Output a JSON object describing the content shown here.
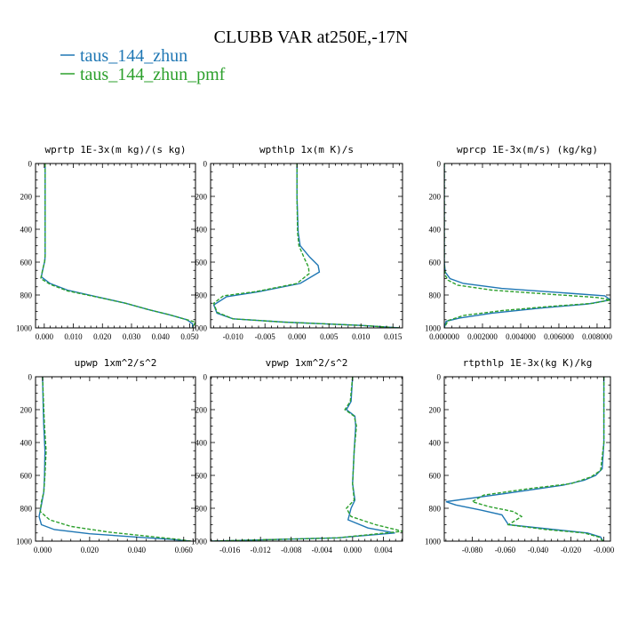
{
  "figure": {
    "title": "CLUBB VAR at250E,-17N",
    "legend": [
      {
        "name": "taus_144_zhun",
        "color": "#1f77b4",
        "dash": "solid"
      },
      {
        "name": "taus_144_zhun_pmf",
        "color": "#2ca02c",
        "dash": "dashed"
      }
    ]
  },
  "chart_data": [
    {
      "type": "line",
      "title": "wprtp  1E-3x(m kg)/(s kg)",
      "xlim": [
        -0.003,
        0.052
      ],
      "ylim": [
        0,
        1000
      ],
      "y_inverted": true,
      "xticks": [
        0.0,
        0.01,
        0.02,
        0.03,
        0.04,
        0.05
      ],
      "xtick_labels": [
        "0.000",
        "0.010",
        "0.020",
        "0.030",
        "0.040",
        "0.050"
      ],
      "yticks": [
        0,
        200,
        400,
        600,
        800,
        1000
      ],
      "ytick_labels": [
        "0",
        "200",
        "400",
        "600",
        "800",
        "1000"
      ],
      "grid": false,
      "series": [
        {
          "name": "taus_144_zhun",
          "color": "#1f77b4",
          "dash": "solid",
          "x": [
            0.0003,
            0.0003,
            0.0003,
            0.0003,
            0.0002,
            -0.0003,
            -0.001,
            0.002,
            0.008,
            0.018,
            0.028,
            0.036,
            0.043,
            0.049,
            0.051,
            0.051
          ],
          "y": [
            0,
            200,
            400,
            550,
            590,
            630,
            690,
            730,
            770,
            810,
            850,
            890,
            920,
            950,
            975,
            1000
          ]
        },
        {
          "name": "taus_144_zhun_pmf",
          "color": "#2ca02c",
          "dash": "dashed",
          "x": [
            0.0003,
            0.0003,
            0.0003,
            0.0003,
            0.0001,
            -0.0005,
            -0.0012,
            0.002,
            0.008,
            0.018,
            0.028,
            0.036,
            0.043,
            0.049,
            0.052,
            0.051
          ],
          "y": [
            0,
            200,
            400,
            560,
            600,
            640,
            700,
            735,
            775,
            812,
            850,
            890,
            920,
            950,
            965,
            1000
          ]
        }
      ]
    },
    {
      "type": "line",
      "title": "wpthlp  1x(m K)/s",
      "xlim": [
        -0.0135,
        0.0165
      ],
      "ylim": [
        0,
        1000
      ],
      "y_inverted": true,
      "xticks": [
        -0.01,
        -0.005,
        0.0,
        0.005,
        0.01,
        0.015
      ],
      "xtick_labels": [
        "-0.010",
        "-0.005",
        "0.000",
        "0.005",
        "0.010",
        "0.015"
      ],
      "yticks": [
        0,
        200,
        400,
        600,
        800,
        1000
      ],
      "ytick_labels": [
        "0",
        "200",
        "400",
        "600",
        "800",
        "1000"
      ],
      "grid": false,
      "series": [
        {
          "name": "taus_144_zhun",
          "color": "#1f77b4",
          "dash": "solid",
          "x": [
            0.0,
            0.0,
            0.0002,
            0.0005,
            0.002,
            0.0033,
            0.0035,
            0.0005,
            -0.006,
            -0.011,
            -0.013,
            -0.0125,
            -0.01,
            -0.002,
            0.01,
            0.016
          ],
          "y": [
            0,
            200,
            420,
            500,
            570,
            620,
            660,
            730,
            780,
            810,
            860,
            910,
            945,
            965,
            985,
            1000
          ]
        },
        {
          "name": "taus_144_zhun_pmf",
          "color": "#2ca02c",
          "dash": "dashed",
          "x": [
            0.0,
            0.0,
            0.0001,
            0.0003,
            0.0012,
            0.0018,
            0.0019,
            0.0,
            -0.0065,
            -0.0115,
            -0.013,
            -0.0125,
            -0.01,
            -0.002,
            0.01,
            0.016
          ],
          "y": [
            0,
            200,
            420,
            500,
            580,
            630,
            670,
            730,
            780,
            805,
            850,
            905,
            945,
            965,
            985,
            1000
          ]
        }
      ]
    },
    {
      "type": "line",
      "title": "wprcp  1E-3x(m/s) (kg/kg)",
      "xlim": [
        0,
        0.0087
      ],
      "ylim": [
        0,
        1000
      ],
      "y_inverted": true,
      "xticks": [
        0.0,
        0.002,
        0.004,
        0.006,
        0.008
      ],
      "xtick_labels": [
        "0.000000",
        "0.002000",
        "0.004000",
        "0.006000",
        "0.008000"
      ],
      "yticks": [
        0,
        200,
        400,
        600,
        800,
        1000
      ],
      "ytick_labels": [
        "0",
        "200",
        "400",
        "600",
        "800",
        "1000"
      ],
      "grid": false,
      "series": [
        {
          "name": "taus_144_zhun",
          "color": "#1f77b4",
          "dash": "solid",
          "x": [
            0.0,
            0.0,
            0.0,
            5e-05,
            0.0003,
            0.001,
            0.003,
            0.006,
            0.0084,
            0.0087,
            0.0075,
            0.005,
            0.0025,
            0.0008,
            0.0001,
            0.0
          ],
          "y": [
            0,
            200,
            600,
            660,
            700,
            730,
            760,
            785,
            805,
            830,
            855,
            880,
            910,
            940,
            960,
            1000
          ]
        },
        {
          "name": "taus_144_zhun_pmf",
          "color": "#2ca02c",
          "dash": "dashed",
          "x": [
            0.0,
            0.0,
            0.0,
            5e-05,
            0.0002,
            0.0007,
            0.0025,
            0.0055,
            0.008,
            0.0087,
            0.0078,
            0.0055,
            0.003,
            0.001,
            0.0002,
            0.0
          ],
          "y": [
            0,
            200,
            620,
            680,
            710,
            740,
            770,
            795,
            815,
            830,
            850,
            870,
            895,
            925,
            955,
            1000
          ]
        }
      ]
    },
    {
      "type": "line",
      "title": "upwp  1xm^2/s^2",
      "xlim": [
        -0.003,
        0.065
      ],
      "ylim": [
        0,
        1000
      ],
      "y_inverted": true,
      "xticks": [
        0.0,
        0.02,
        0.04,
        0.06
      ],
      "xtick_labels": [
        "0.000",
        "0.020",
        "0.040",
        "0.060"
      ],
      "yticks": [
        0,
        200,
        400,
        600,
        800,
        1000
      ],
      "ytick_labels": [
        "0",
        "200",
        "400",
        "600",
        "800",
        "1000"
      ],
      "grid": false,
      "series": [
        {
          "name": "taus_144_zhun",
          "color": "#1f77b4",
          "dash": "solid",
          "x": [
            0.0,
            0.0003,
            0.0005,
            0.001,
            0.0008,
            0.0005,
            -0.0005,
            -0.0015,
            -0.0005,
            0.005,
            0.02,
            0.04,
            0.055,
            0.063
          ],
          "y": [
            0,
            200,
            300,
            450,
            600,
            700,
            780,
            850,
            900,
            930,
            955,
            975,
            990,
            1000
          ]
        },
        {
          "name": "taus_144_zhun_pmf",
          "color": "#2ca02c",
          "dash": "dashed",
          "x": [
            0.0,
            0.0005,
            0.0008,
            0.0015,
            0.001,
            0.0005,
            -0.0005,
            -0.001,
            0.003,
            0.012,
            0.028,
            0.045,
            0.058,
            0.063
          ],
          "y": [
            0,
            200,
            300,
            450,
            600,
            700,
            760,
            820,
            870,
            910,
            945,
            970,
            990,
            1000
          ]
        }
      ]
    },
    {
      "type": "line",
      "title": "vpwp  1xm^2/s^2",
      "xlim": [
        -0.0185,
        0.0065
      ],
      "ylim": [
        0,
        1000
      ],
      "y_inverted": true,
      "xticks": [
        -0.016,
        -0.012,
        -0.008,
        -0.004,
        0.0,
        0.004
      ],
      "xtick_labels": [
        "-0.016",
        "-0.012",
        "-0.008",
        "-0.004",
        "0.000",
        "0.004"
      ],
      "yticks": [
        0,
        200,
        400,
        600,
        800,
        1000
      ],
      "ytick_labels": [
        "0",
        "200",
        "400",
        "600",
        "800",
        "1000"
      ],
      "grid": false,
      "series": [
        {
          "name": "taus_144_zhun",
          "color": "#1f77b4",
          "dash": "solid",
          "x": [
            0.0,
            -0.0002,
            -0.0008,
            0.0003,
            0.0004,
            0.0002,
            0.0,
            0.0003,
            -0.0002,
            -0.0006,
            0.002,
            0.0055,
            -0.002,
            -0.0185
          ],
          "y": [
            0,
            150,
            200,
            240,
            300,
            450,
            650,
            750,
            800,
            870,
            920,
            950,
            980,
            1000
          ]
        },
        {
          "name": "taus_144_zhun_pmf",
          "color": "#2ca02c",
          "dash": "dashed",
          "x": [
            0.0,
            -0.0003,
            -0.001,
            0.0002,
            0.0005,
            0.0002,
            0.0,
            0.0002,
            -0.0008,
            -0.0002,
            0.003,
            0.0065,
            -0.002,
            -0.0185
          ],
          "y": [
            0,
            150,
            200,
            240,
            300,
            450,
            650,
            750,
            800,
            850,
            900,
            940,
            980,
            1000
          ]
        }
      ]
    },
    {
      "type": "line",
      "title": "rtpthlp  1E-3x(kg K)/kg",
      "xlim": [
        -0.097,
        0.004
      ],
      "ylim": [
        0,
        1000
      ],
      "y_inverted": true,
      "xticks": [
        -0.08,
        -0.06,
        -0.04,
        -0.02,
        0.0
      ],
      "xtick_labels": [
        "-0.080",
        "-0.060",
        "-0.040",
        "-0.020",
        "-0.000"
      ],
      "yticks": [
        0,
        200,
        400,
        600,
        800,
        1000
      ],
      "ytick_labels": [
        "0",
        "200",
        "400",
        "600",
        "800",
        "1000"
      ],
      "grid": false,
      "series": [
        {
          "name": "taus_144_zhun",
          "color": "#1f77b4",
          "dash": "solid",
          "x": [
            0.0,
            0.0,
            -0.001,
            -0.005,
            -0.012,
            -0.025,
            -0.06,
            -0.096,
            -0.09,
            -0.075,
            -0.062,
            -0.058,
            -0.03,
            -0.01,
            -0.002,
            -0.0005
          ],
          "y": [
            0,
            400,
            560,
            600,
            630,
            660,
            710,
            760,
            780,
            810,
            840,
            900,
            930,
            950,
            975,
            1000
          ]
        },
        {
          "name": "taus_144_zhun_pmf",
          "color": "#2ca02c",
          "dash": "dashed",
          "x": [
            0.0,
            0.0,
            -0.002,
            -0.008,
            -0.02,
            -0.045,
            -0.073,
            -0.08,
            -0.07,
            -0.055,
            -0.05,
            -0.058,
            -0.035,
            -0.012,
            -0.003,
            -0.0005
          ],
          "y": [
            0,
            400,
            570,
            610,
            650,
            680,
            720,
            760,
            790,
            820,
            850,
            900,
            930,
            950,
            975,
            1000
          ]
        }
      ]
    }
  ]
}
